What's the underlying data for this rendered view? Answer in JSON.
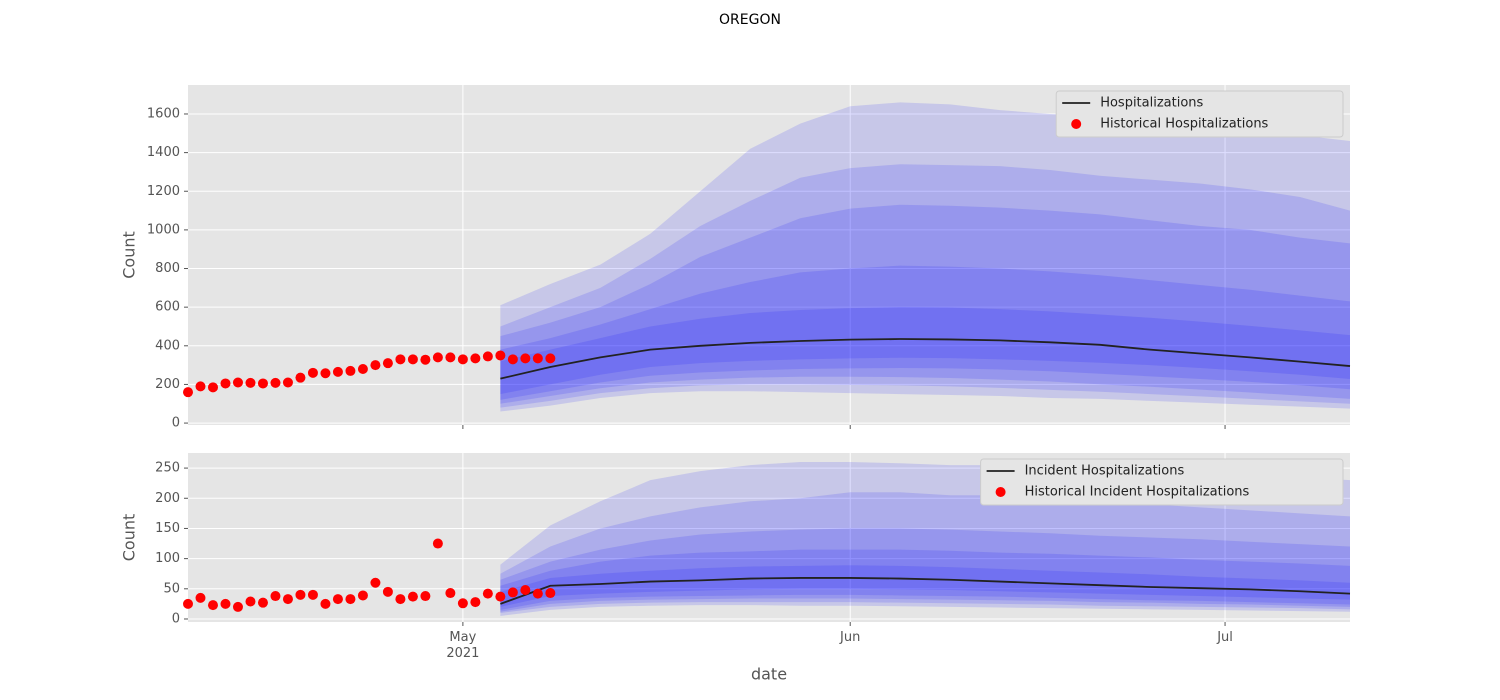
{
  "title": "OREGON",
  "chart_data": [
    {
      "type": "fan",
      "ylabel": "Count",
      "xlim": [
        "2021-04-09",
        "2021-07-11"
      ],
      "ylim": [
        -10,
        1750
      ],
      "yticks": [
        0,
        200,
        400,
        600,
        800,
        1000,
        1200,
        1400,
        1600
      ],
      "grid": true,
      "legend": "upper right",
      "forecast_x": [
        "2021-05-04",
        "2021-05-08",
        "2021-05-12",
        "2021-05-16",
        "2021-05-20",
        "2021-05-24",
        "2021-05-28",
        "2021-06-01",
        "2021-06-05",
        "2021-06-09",
        "2021-06-13",
        "2021-06-17",
        "2021-06-21",
        "2021-06-25",
        "2021-06-29",
        "2021-07-03",
        "2021-07-07",
        "2021-07-11"
      ],
      "band_color": "#0000ff",
      "band_opacity": 0.13,
      "bands": [
        {
          "lower": [
            60,
            90,
            130,
            155,
            165,
            165,
            160,
            155,
            150,
            145,
            140,
            130,
            125,
            115,
            105,
            95,
            85,
            75
          ],
          "upper": [
            610,
            720,
            820,
            980,
            1200,
            1420,
            1550,
            1640,
            1660,
            1650,
            1620,
            1600,
            1590,
            1570,
            1540,
            1510,
            1490,
            1460
          ]
        },
        {
          "lower": [
            80,
            115,
            155,
            180,
            195,
            200,
            200,
            198,
            195,
            190,
            182,
            172,
            162,
            150,
            138,
            125,
            112,
            100
          ],
          "upper": [
            500,
            600,
            700,
            850,
            1020,
            1150,
            1270,
            1320,
            1340,
            1335,
            1330,
            1310,
            1280,
            1260,
            1240,
            1210,
            1170,
            1100
          ]
        },
        {
          "lower": [
            100,
            140,
            180,
            210,
            225,
            235,
            240,
            240,
            238,
            233,
            225,
            215,
            200,
            188,
            173,
            158,
            142,
            125
          ],
          "upper": [
            450,
            520,
            600,
            720,
            860,
            960,
            1060,
            1110,
            1130,
            1125,
            1115,
            1100,
            1080,
            1050,
            1020,
            1000,
            960,
            930
          ]
        },
        {
          "lower": [
            120,
            165,
            210,
            245,
            262,
            272,
            280,
            283,
            285,
            283,
            277,
            268,
            255,
            242,
            228,
            213,
            196,
            175
          ],
          "upper": [
            380,
            440,
            510,
            590,
            670,
            730,
            780,
            800,
            815,
            810,
            800,
            785,
            765,
            740,
            715,
            690,
            660,
            630
          ]
        },
        {
          "lower": [
            150,
            200,
            250,
            290,
            310,
            322,
            330,
            335,
            338,
            336,
            330,
            322,
            312,
            300,
            285,
            268,
            250,
            228
          ],
          "upper": [
            320,
            380,
            440,
            500,
            540,
            570,
            585,
            595,
            600,
            598,
            590,
            578,
            562,
            545,
            525,
            503,
            480,
            455
          ]
        }
      ],
      "median": {
        "name": "Hospitalizations",
        "color": "#222222",
        "values": [
          230,
          290,
          340,
          380,
          400,
          415,
          425,
          432,
          435,
          433,
          428,
          418,
          405,
          380,
          360,
          340,
          318,
          295
        ]
      },
      "historical": {
        "name": "Historical Hospitalizations",
        "color": "#ff0000",
        "x": [
          "2021-04-09",
          "2021-04-10",
          "2021-04-11",
          "2021-04-12",
          "2021-04-13",
          "2021-04-14",
          "2021-04-15",
          "2021-04-16",
          "2021-04-17",
          "2021-04-18",
          "2021-04-19",
          "2021-04-20",
          "2021-04-21",
          "2021-04-22",
          "2021-04-23",
          "2021-04-24",
          "2021-04-25",
          "2021-04-26",
          "2021-04-27",
          "2021-04-28",
          "2021-04-29",
          "2021-04-30",
          "2021-05-01",
          "2021-05-02",
          "2021-05-03",
          "2021-05-04",
          "2021-05-05",
          "2021-05-06",
          "2021-05-07",
          "2021-05-08"
        ],
        "values": [
          160,
          190,
          185,
          205,
          210,
          208,
          205,
          208,
          210,
          235,
          260,
          258,
          265,
          270,
          280,
          300,
          310,
          330,
          330,
          328,
          340,
          340,
          330,
          335,
          345,
          350,
          330,
          335,
          335,
          335
        ]
      }
    },
    {
      "type": "fan",
      "ylabel": "Count",
      "xlabel": "date",
      "xlim": [
        "2021-04-09",
        "2021-07-11"
      ],
      "ylim": [
        -5,
        275
      ],
      "yticks": [
        0,
        50,
        100,
        150,
        200,
        250
      ],
      "xticks": [
        {
          "value": "2021-05-01",
          "label": "May\n2021"
        },
        {
          "value": "2021-06-01",
          "label": "Jun"
        },
        {
          "value": "2021-07-01",
          "label": "Jul"
        }
      ],
      "grid": true,
      "legend": "upper right",
      "forecast_x": [
        "2021-05-04",
        "2021-05-08",
        "2021-05-12",
        "2021-05-16",
        "2021-05-20",
        "2021-05-24",
        "2021-05-28",
        "2021-06-01",
        "2021-06-05",
        "2021-06-09",
        "2021-06-13",
        "2021-06-17",
        "2021-06-21",
        "2021-06-25",
        "2021-06-29",
        "2021-07-03",
        "2021-07-07",
        "2021-07-11"
      ],
      "band_color": "#0000ff",
      "band_opacity": 0.13,
      "bands": [
        {
          "lower": [
            5,
            15,
            20,
            22,
            23,
            23,
            22,
            22,
            21,
            20,
            19,
            18,
            17,
            16,
            15,
            14,
            13,
            12
          ],
          "upper": [
            90,
            155,
            195,
            230,
            245,
            255,
            260,
            260,
            258,
            255,
            255,
            250,
            248,
            245,
            240,
            238,
            235,
            230
          ]
        },
        {
          "lower": [
            10,
            20,
            25,
            27,
            28,
            28,
            28,
            28,
            27,
            26,
            25,
            24,
            22,
            21,
            20,
            19,
            18,
            16
          ],
          "upper": [
            75,
            120,
            150,
            170,
            185,
            195,
            200,
            210,
            210,
            205,
            205,
            200,
            195,
            190,
            185,
            180,
            175,
            170
          ]
        },
        {
          "lower": [
            12,
            25,
            30,
            32,
            33,
            34,
            34,
            34,
            33,
            32,
            31,
            30,
            28,
            27,
            25,
            24,
            22,
            20
          ],
          "upper": [
            65,
            95,
            115,
            130,
            140,
            145,
            148,
            150,
            150,
            148,
            145,
            142,
            138,
            135,
            132,
            128,
            124,
            120
          ]
        },
        {
          "lower": [
            15,
            30,
            35,
            37,
            38,
            39,
            40,
            40,
            39,
            38,
            37,
            35,
            33,
            31,
            30,
            28,
            26,
            24
          ],
          "upper": [
            55,
            80,
            95,
            105,
            110,
            112,
            115,
            115,
            115,
            113,
            110,
            108,
            105,
            102,
            98,
            95,
            92,
            88
          ]
        },
        {
          "lower": [
            20,
            38,
            42,
            45,
            47,
            49,
            50,
            50,
            49,
            48,
            46,
            44,
            42,
            40,
            38,
            36,
            34,
            32
          ],
          "upper": [
            45,
            68,
            75,
            80,
            84,
            87,
            88,
            89,
            88,
            86,
            83,
            80,
            77,
            74,
            70,
            67,
            64,
            60
          ]
        }
      ],
      "median": {
        "name": "Incident Hospitalizations",
        "color": "#222222",
        "values": [
          25,
          55,
          58,
          62,
          64,
          67,
          68,
          68,
          67,
          65,
          62,
          59,
          56,
          53,
          51,
          49,
          46,
          42
        ]
      },
      "historical": {
        "name": "Historical Incident Hospitalizations",
        "color": "#ff0000",
        "x": [
          "2021-04-09",
          "2021-04-10",
          "2021-04-11",
          "2021-04-12",
          "2021-04-13",
          "2021-04-14",
          "2021-04-15",
          "2021-04-16",
          "2021-04-17",
          "2021-04-18",
          "2021-04-19",
          "2021-04-20",
          "2021-04-21",
          "2021-04-22",
          "2021-04-23",
          "2021-04-24",
          "2021-04-25",
          "2021-04-26",
          "2021-04-27",
          "2021-04-28",
          "2021-04-29",
          "2021-04-30",
          "2021-05-01",
          "2021-05-02",
          "2021-05-03",
          "2021-05-04",
          "2021-05-05",
          "2021-05-06",
          "2021-05-07",
          "2021-05-08"
        ],
        "values": [
          25,
          35,
          23,
          25,
          20,
          29,
          27,
          38,
          33,
          40,
          40,
          25,
          33,
          33,
          39,
          60,
          45,
          33,
          37,
          38,
          125,
          43,
          26,
          28,
          42,
          37,
          44,
          48,
          42,
          43
        ]
      }
    }
  ]
}
